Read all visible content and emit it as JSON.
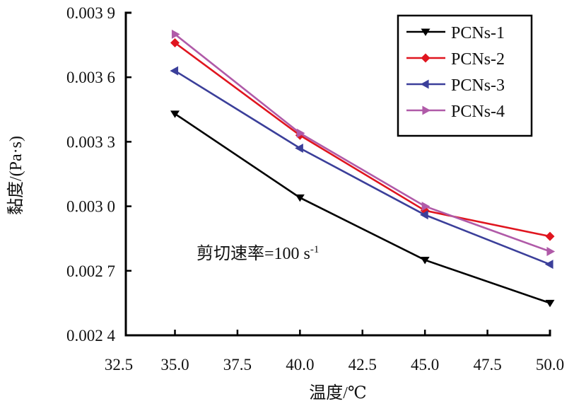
{
  "chart_data": {
    "type": "line",
    "title": "",
    "xlabel": "温度/℃",
    "ylabel": "黏度/(Pa·s)",
    "xlim": [
      32.5,
      50.0
    ],
    "ylim": [
      0.0024,
      0.0039
    ],
    "x_ticks": [
      32.5,
      35.0,
      37.5,
      40.0,
      42.5,
      45.0,
      47.5,
      50.0
    ],
    "x_tick_labels": [
      "32.5",
      "35.0",
      "37.5",
      "40.0",
      "42.5",
      "45.0",
      "47.5",
      "50.0"
    ],
    "y_ticks": [
      0.0024,
      0.0027,
      0.003,
      0.0033,
      0.0036,
      0.0039
    ],
    "y_tick_labels": [
      "0.002 4",
      "0.002 7",
      "0.003 0",
      "0.003 3",
      "0.003 6",
      "0.003 9"
    ],
    "grid": false,
    "legend_position": "top-right",
    "annotation": {
      "text": "剪切速率=100 s",
      "superscript": "-1"
    },
    "x": [
      35.0,
      40.0,
      45.0,
      50.0
    ],
    "series": [
      {
        "name": "PCNs-1",
        "color": "#000000",
        "marker": "triangle-down",
        "values": [
          0.00343,
          0.00304,
          0.00275,
          0.00255
        ]
      },
      {
        "name": "PCNs-2",
        "color": "#e0151f",
        "marker": "diamond",
        "values": [
          0.00376,
          0.00333,
          0.00298,
          0.00286
        ]
      },
      {
        "name": "PCNs-3",
        "color": "#3b3f9a",
        "marker": "triangle-left",
        "values": [
          0.00363,
          0.00327,
          0.00296,
          0.00273
        ]
      },
      {
        "name": "PCNs-4",
        "color": "#b05aa8",
        "marker": "triangle-right",
        "values": [
          0.0038,
          0.00334,
          0.003,
          0.00279
        ]
      }
    ]
  }
}
